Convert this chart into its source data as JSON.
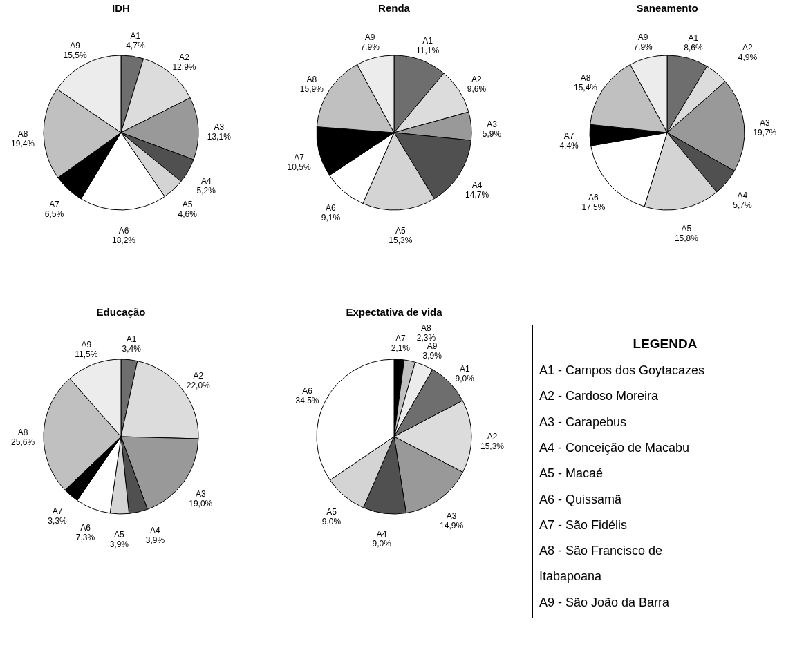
{
  "chart_data": [
    {
      "type": "pie",
      "title": "IDH",
      "categories": [
        "A1",
        "A2",
        "A3",
        "A4",
        "A5",
        "A6",
        "A7",
        "A8",
        "A9"
      ],
      "values": [
        4.7,
        12.9,
        13.1,
        5.2,
        4.6,
        18.2,
        6.5,
        19.4,
        15.5
      ],
      "value_labels": [
        "4,7%",
        "12,9%",
        "13,1%",
        "5,2%",
        "4,6%",
        "18,2%",
        "6,5%",
        "19,4%",
        "15,5%"
      ],
      "colors": [
        "#6e6e6e",
        "#dcdcdc",
        "#999999",
        "#505050",
        "#d4d4d4",
        "#ffffff",
        "#000000",
        "#c0c0c0",
        "#ececec"
      ]
    },
    {
      "type": "pie",
      "title": "Renda",
      "categories": [
        "A1",
        "A2",
        "A3",
        "A4",
        "A5",
        "A6",
        "A7",
        "A8",
        "A9"
      ],
      "values": [
        11.1,
        9.6,
        5.9,
        14.7,
        15.3,
        9.1,
        10.5,
        15.9,
        7.9
      ],
      "value_labels": [
        "11,1%",
        "9,6%",
        "5,9%",
        "14,7%",
        "15,3%",
        "9,1%",
        "10,5%",
        "15,9%",
        "7,9%"
      ],
      "colors": [
        "#6e6e6e",
        "#dcdcdc",
        "#999999",
        "#505050",
        "#d4d4d4",
        "#ffffff",
        "#000000",
        "#c0c0c0",
        "#ececec"
      ]
    },
    {
      "type": "pie",
      "title": "Saneamento",
      "categories": [
        "A1",
        "A2",
        "A3",
        "A4",
        "A5",
        "A6",
        "A7",
        "A8",
        "A9"
      ],
      "values": [
        8.6,
        4.9,
        19.7,
        5.7,
        15.8,
        17.5,
        4.4,
        15.4,
        7.9
      ],
      "value_labels": [
        "8,6%",
        "4,9%",
        "19,7%",
        "5,7%",
        "15,8%",
        "17,5%",
        "4,4%",
        "15,4%",
        "7,9%"
      ],
      "colors": [
        "#6e6e6e",
        "#dcdcdc",
        "#999999",
        "#505050",
        "#d4d4d4",
        "#ffffff",
        "#000000",
        "#c0c0c0",
        "#ececec"
      ]
    },
    {
      "type": "pie",
      "title": "Educação",
      "categories": [
        "A1",
        "A2",
        "A3",
        "A4",
        "A5",
        "A6",
        "A7",
        "A8",
        "A9"
      ],
      "values": [
        3.4,
        22.0,
        19.0,
        3.9,
        3.9,
        7.3,
        3.3,
        25.6,
        11.5
      ],
      "value_labels": [
        "3,4%",
        "22,0%",
        "19,0%",
        "3,9%",
        "3,9%",
        "7,3%",
        "3,3%",
        "25,6%",
        "11,5%"
      ],
      "colors": [
        "#6e6e6e",
        "#dcdcdc",
        "#999999",
        "#505050",
        "#d4d4d4",
        "#ffffff",
        "#000000",
        "#c0c0c0",
        "#ececec"
      ]
    },
    {
      "type": "pie",
      "title": "Expectativa de vida",
      "categories": [
        "A7",
        "A8",
        "A9",
        "A1",
        "A2",
        "A3",
        "A4",
        "A5",
        "A6"
      ],
      "values": [
        2.1,
        2.3,
        3.9,
        9.0,
        15.3,
        14.9,
        9.0,
        9.0,
        34.5
      ],
      "value_labels": [
        "2,1%",
        "2,3%",
        "3,9%",
        "9,0%",
        "15,3%",
        "14,9%",
        "9,0%",
        "9,0%",
        "34,5%"
      ],
      "colors": [
        "#000000",
        "#c0c0c0",
        "#ececec",
        "#6e6e6e",
        "#dcdcdc",
        "#999999",
        "#505050",
        "#d4d4d4",
        "#ffffff"
      ]
    },
    {
      "type": "other",
      "title": "LEGENDA",
      "annotations": [
        "A1 - Campos dos Goytacazes",
        "A2 - Cardoso Moreira",
        "A3 - Carapebus",
        "A4 - Conceição de Macabu",
        "A5 - Macaé",
        "A6 - Quissamã",
        "A7 - São Fidélis",
        "A8 - São Francisco de",
        "Itabapoana",
        "A9 - São João da Barra"
      ]
    }
  ]
}
